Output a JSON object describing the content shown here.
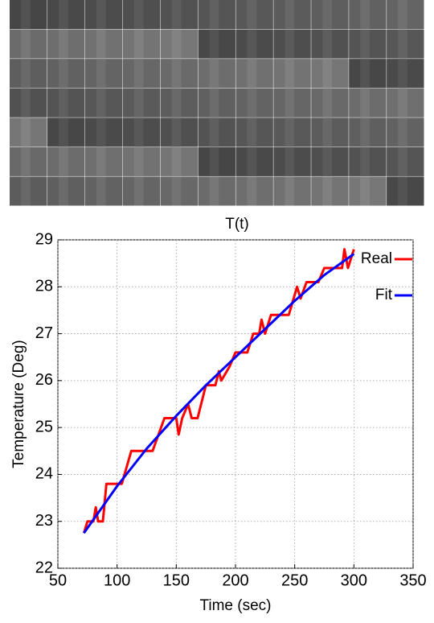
{
  "chart_data": {
    "type": "line",
    "title": "T(t)",
    "x_label": "Time (sec)",
    "y_label": "Temperature (Deg)",
    "xlim": [
      50,
      350
    ],
    "xticks": [
      50,
      100,
      150,
      200,
      250,
      300,
      350
    ],
    "ylim": [
      22,
      29
    ],
    "yticks": [
      22,
      23,
      24,
      25,
      26,
      27,
      28,
      29
    ],
    "grid": true,
    "legend": "upper right",
    "series": [
      {
        "name": "Real",
        "color": "#ff0000",
        "x": [
          72,
          75,
          80,
          82,
          84,
          88,
          91,
          104,
          112,
          130,
          140,
          150,
          152,
          155,
          160,
          163,
          168,
          175,
          183,
          186,
          188,
          195,
          200,
          210,
          215,
          220,
          222,
          225,
          230,
          245,
          252,
          255,
          260,
          270,
          275,
          290,
          292,
          295,
          300
        ],
        "values": [
          22.75,
          23.0,
          23.0,
          23.3,
          23.0,
          23.0,
          23.8,
          23.8,
          24.5,
          24.5,
          25.2,
          25.2,
          24.85,
          25.2,
          25.5,
          25.2,
          25.2,
          25.9,
          25.9,
          26.2,
          26.0,
          26.3,
          26.6,
          26.6,
          27.0,
          27.0,
          27.3,
          27.0,
          27.4,
          27.4,
          28.0,
          27.75,
          28.1,
          28.1,
          28.4,
          28.4,
          28.8,
          28.4,
          28.8
        ]
      },
      {
        "name": "Fit",
        "color": "#0000ff",
        "x": [
          72,
          100,
          125,
          150,
          175,
          200,
          225,
          250,
          275,
          300
        ],
        "values": [
          22.75,
          23.75,
          24.55,
          25.25,
          25.9,
          26.5,
          27.1,
          27.7,
          28.25,
          28.7
        ]
      }
    ]
  }
}
